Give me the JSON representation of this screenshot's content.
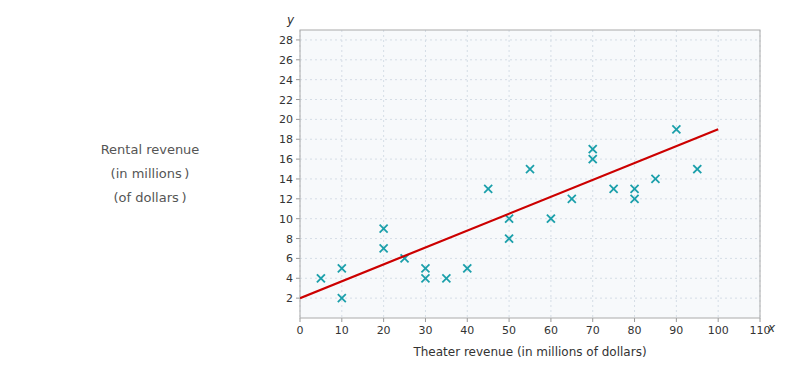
{
  "chart_data": {
    "type": "scatter",
    "x_label": "Theater revenue (in millions of dollars)",
    "y_label": [
      "Rental revenue",
      "(in millions )",
      "(of dollars )"
    ],
    "annotations": [
      "y",
      "x"
    ],
    "series": [
      {
        "type": "scatter",
        "marker": "x",
        "color": "#1a9faa",
        "x": [
          5,
          10,
          10,
          20,
          20,
          25,
          30,
          30,
          35,
          40,
          45,
          50,
          50,
          55,
          60,
          65,
          70,
          70,
          75,
          80,
          80,
          85,
          90,
          95
        ],
        "values": [
          4,
          2,
          5,
          9,
          7,
          6,
          5,
          4,
          4,
          5,
          13,
          8,
          10,
          15,
          10,
          12,
          17,
          16,
          13,
          13,
          12,
          14,
          19,
          15
        ]
      },
      {
        "type": "line",
        "line_style": "solid",
        "color": "#cc0000",
        "x": [
          0,
          100
        ],
        "values": [
          2,
          19
        ]
      }
    ],
    "xlim": [
      0,
      110
    ],
    "ylim": [
      0,
      29
    ],
    "xticks": [
      0,
      10,
      20,
      30,
      40,
      50,
      60,
      70,
      80,
      90,
      100,
      110
    ],
    "yticks": [
      2,
      4,
      6,
      8,
      10,
      12,
      14,
      16,
      18,
      20,
      22,
      24,
      26,
      28
    ],
    "grid": true
  }
}
